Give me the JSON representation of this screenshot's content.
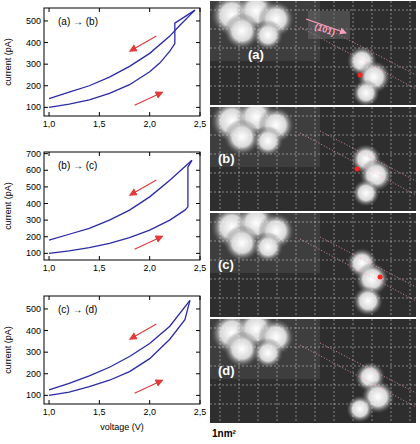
{
  "chart_data": [
    {
      "type": "line",
      "title": "(a) → (b)",
      "ylabel": "current (pA)",
      "xlim": [
        0.95,
        2.5
      ],
      "ylim": [
        60,
        560
      ],
      "xticks": [
        {
          "value": 1.0,
          "label": "1,0"
        },
        {
          "value": 1.5,
          "label": "1,5"
        },
        {
          "value": 2.0,
          "label": "2,0"
        },
        {
          "value": 2.5,
          "label": "2,5"
        }
      ],
      "yticks": [
        100,
        200,
        300,
        400,
        500
      ],
      "series": [
        {
          "color": "#2a2aa8",
          "line_style": "solid",
          "x": [
            1.0,
            1.2,
            1.4,
            1.6,
            1.8,
            2.0,
            2.1,
            2.2,
            2.25,
            2.25,
            2.35,
            2.45
          ],
          "values": [
            100,
            115,
            135,
            165,
            205,
            265,
            305,
            360,
            395,
            490,
            520,
            550
          ]
        },
        {
          "color": "#2a2aa8",
          "line_style": "solid",
          "x": [
            2.45,
            2.3,
            2.2,
            2.0,
            1.8,
            1.6,
            1.4,
            1.2,
            1.0
          ],
          "values": [
            550,
            480,
            430,
            350,
            290,
            240,
            200,
            170,
            140
          ]
        }
      ]
    },
    {
      "type": "line",
      "title": "(b) → (c)",
      "ylabel": "current (pA)",
      "xlim": [
        0.95,
        2.5
      ],
      "ylim": [
        60,
        710
      ],
      "xticks": [
        {
          "value": 1.0,
          "label": "1,0"
        },
        {
          "value": 1.5,
          "label": "1,5"
        },
        {
          "value": 2.0,
          "label": "2,0"
        },
        {
          "value": 2.5,
          "label": "2,5"
        }
      ],
      "yticks": [
        100,
        200,
        300,
        400,
        500,
        600,
        700
      ],
      "series": [
        {
          "color": "#2a2aa8",
          "line_style": "solid",
          "x": [
            1.0,
            1.2,
            1.4,
            1.6,
            1.8,
            2.0,
            2.2,
            2.35,
            2.38,
            2.38,
            2.42
          ],
          "values": [
            100,
            115,
            135,
            160,
            195,
            240,
            300,
            360,
            380,
            620,
            660
          ]
        },
        {
          "color": "#2a2aa8",
          "line_style": "solid",
          "x": [
            2.42,
            2.2,
            2.0,
            1.8,
            1.6,
            1.4,
            1.2,
            1.0
          ],
          "values": [
            660,
            540,
            440,
            360,
            300,
            250,
            215,
            180
          ]
        }
      ]
    },
    {
      "type": "line",
      "title": "(c) → (d)",
      "ylabel": "current (pA)",
      "xlabel": "voltage (V)",
      "xlim": [
        0.95,
        2.5
      ],
      "ylim": [
        60,
        560
      ],
      "xticks": [
        {
          "value": 1.0,
          "label": "1,0"
        },
        {
          "value": 1.5,
          "label": "1,5"
        },
        {
          "value": 2.0,
          "label": "2,0"
        },
        {
          "value": 2.5,
          "label": "2,5"
        }
      ],
      "yticks": [
        100,
        200,
        300,
        400,
        500
      ],
      "series": [
        {
          "color": "#2a2aa8",
          "line_style": "solid",
          "x": [
            1.0,
            1.2,
            1.4,
            1.6,
            1.8,
            2.0,
            2.2,
            2.35,
            2.4
          ],
          "values": [
            100,
            115,
            140,
            170,
            210,
            270,
            360,
            450,
            540
          ]
        },
        {
          "color": "#2a2aa8",
          "line_style": "solid",
          "x": [
            2.4,
            2.2,
            2.0,
            1.8,
            1.6,
            1.4,
            1.2,
            1.0
          ],
          "values": [
            540,
            420,
            340,
            280,
            230,
            190,
            155,
            125
          ]
        }
      ]
    }
  ],
  "images": [
    {
      "label": "(a)"
    },
    {
      "label": "(b)"
    },
    {
      "label": "(c)"
    },
    {
      "label": "(d)"
    }
  ],
  "direction_label": "(101)",
  "scale_label": "1nm²"
}
